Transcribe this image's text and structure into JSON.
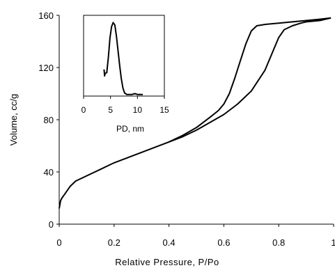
{
  "chart_data": [
    {
      "type": "line",
      "title": "",
      "xlabel": "Relative Pressure, P/Po",
      "ylabel": "Volume, cc/g",
      "xlim": [
        0,
        1
      ],
      "ylim": [
        0,
        160
      ],
      "xticks": [
        0,
        0.2,
        0.4,
        0.6,
        0.8,
        1
      ],
      "xtick_labels": [
        "0",
        "0.2",
        "0.4",
        "0.6",
        "0.8",
        "1"
      ],
      "yticks": [
        0,
        40,
        80,
        120,
        160
      ],
      "ytick_labels": [
        "0",
        "40",
        "80",
        "120",
        "160"
      ],
      "grid": false,
      "legend": "none",
      "series": [
        {
          "color": "#000000",
          "x": [
            0.0,
            0.005,
            0.01,
            0.02,
            0.04,
            0.06,
            0.08,
            0.1,
            0.12,
            0.15,
            0.18,
            0.2,
            0.25,
            0.3,
            0.35,
            0.4,
            0.45,
            0.5,
            0.55,
            0.6,
            0.65,
            0.7,
            0.75,
            0.78,
            0.8,
            0.82,
            0.85,
            0.88,
            0.9,
            0.95,
            0.99
          ],
          "y": [
            12,
            18,
            20,
            23,
            29,
            33,
            35,
            37,
            39,
            42,
            45,
            47,
            51,
            55,
            59,
            63,
            67,
            72,
            78,
            84,
            92,
            102,
            118,
            133,
            143,
            149,
            152,
            154,
            155,
            156,
            158
          ]
        },
        {
          "color": "#000000",
          "x": [
            0.4,
            0.45,
            0.5,
            0.55,
            0.58,
            0.6,
            0.62,
            0.64,
            0.66,
            0.68,
            0.7,
            0.72,
            0.75,
            0.8,
            0.85,
            0.9,
            0.95,
            0.99
          ],
          "y": [
            63,
            68,
            74,
            82,
            87,
            92,
            100,
            112,
            125,
            138,
            148,
            152,
            153,
            154,
            155,
            156,
            157,
            158
          ]
        }
      ]
    },
    {
      "type": "line",
      "title": "",
      "xlabel": "PD, nm",
      "ylabel": "",
      "xlim": [
        0,
        15
      ],
      "ylim": [
        0,
        1
      ],
      "xticks": [
        0,
        5,
        10,
        15
      ],
      "xtick_labels": [
        "0",
        "5",
        "10",
        "15"
      ],
      "grid": false,
      "legend": "none",
      "series": [
        {
          "color": "#000000",
          "x": [
            3.8,
            3.9,
            4.0,
            4.3,
            4.6,
            4.9,
            5.2,
            5.5,
            5.8,
            6.1,
            6.4,
            6.7,
            7.0,
            7.3,
            7.6,
            8.0,
            8.5,
            9.0,
            9.5,
            10.0,
            11.0
          ],
          "y": [
            0.33,
            0.25,
            0.28,
            0.29,
            0.48,
            0.72,
            0.86,
            0.91,
            0.88,
            0.74,
            0.56,
            0.38,
            0.22,
            0.1,
            0.04,
            0.02,
            0.02,
            0.02,
            0.03,
            0.02,
            0.02
          ]
        }
      ]
    }
  ]
}
